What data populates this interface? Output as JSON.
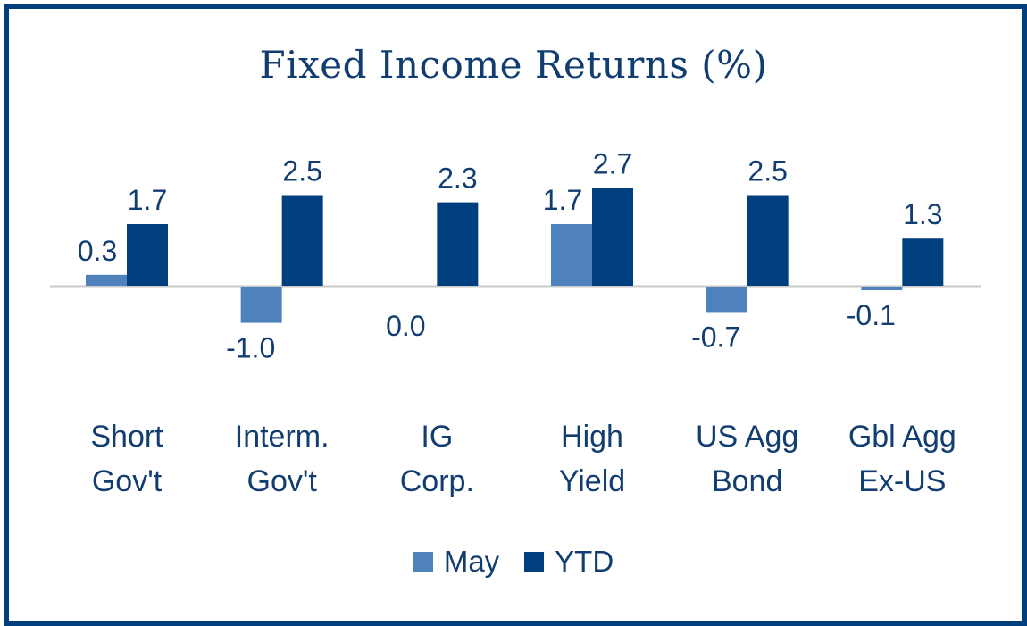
{
  "chart_data": {
    "type": "bar",
    "title": "Fixed Income Returns (%)",
    "categories": [
      [
        "Short",
        "Gov't"
      ],
      [
        "Interm.",
        "Gov't"
      ],
      [
        "IG",
        "Corp."
      ],
      [
        "High",
        "Yield"
      ],
      [
        "US Agg",
        "Bond"
      ],
      [
        "Gbl Agg",
        "Ex-US"
      ]
    ],
    "series": [
      {
        "name": "May",
        "color": "#4f81bd",
        "values": [
          0.3,
          -1.0,
          0.0,
          1.7,
          -0.7,
          -0.1
        ],
        "labels": [
          "0.3",
          "-1.0",
          "0.0",
          "1.7",
          "-0.7",
          "-0.1"
        ]
      },
      {
        "name": "YTD",
        "color": "#003f7d",
        "values": [
          1.7,
          2.5,
          2.3,
          2.7,
          2.5,
          1.3
        ],
        "labels": [
          "1.7",
          "2.5",
          "2.3",
          "2.7",
          "2.5",
          "1.3"
        ]
      }
    ],
    "legend_position": "bottom",
    "grid": false,
    "text_color": "#123d70",
    "axis_color": "#c8c8c8"
  }
}
